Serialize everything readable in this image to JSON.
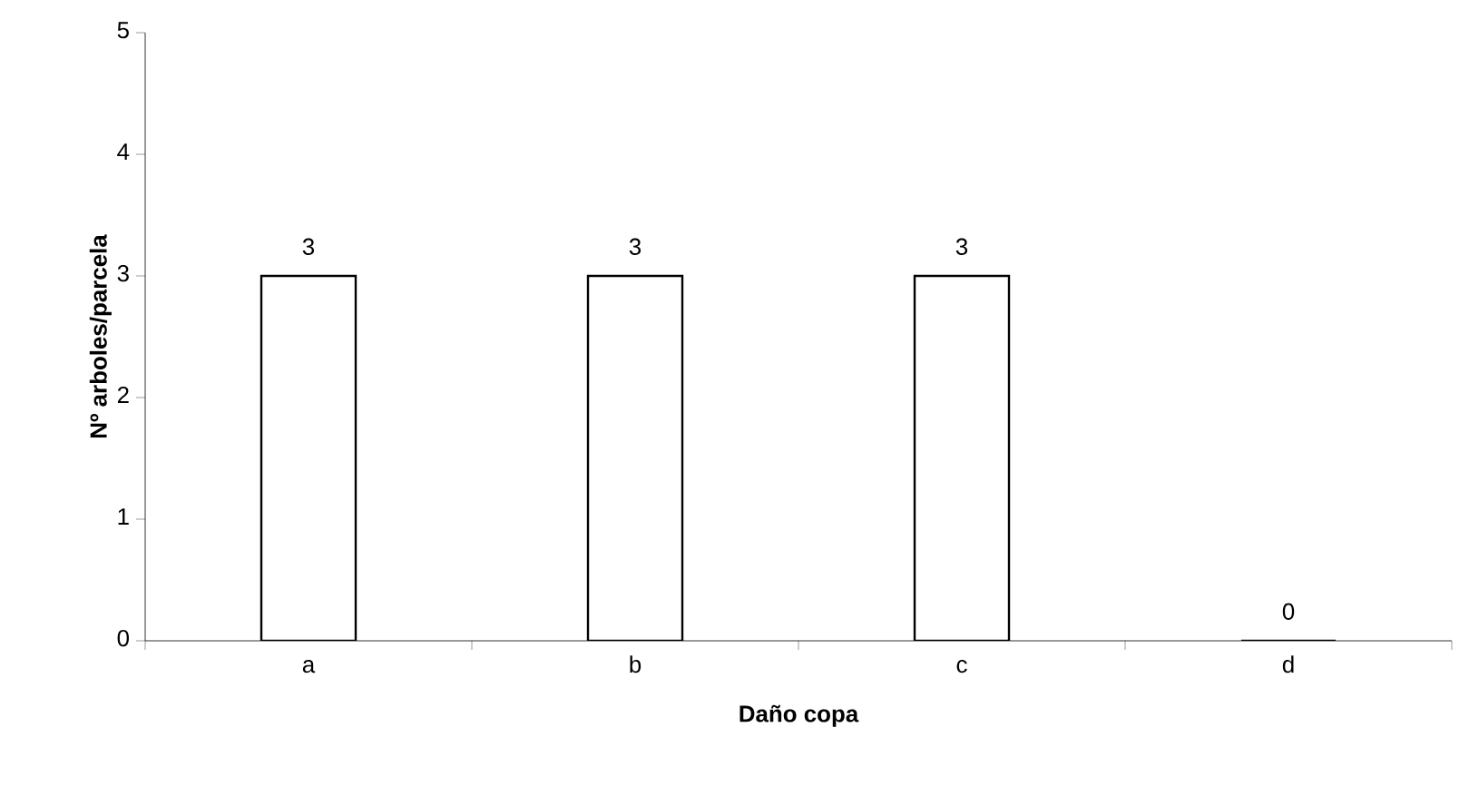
{
  "chart_data": {
    "type": "bar",
    "xlabel": "Daño copa",
    "ylabel": "Nº arboles/parcela",
    "categories": [
      "a",
      "b",
      "c",
      "d"
    ],
    "values": [
      3,
      3,
      3,
      0
    ],
    "color": "#ffffff",
    "ylim": [
      0,
      5
    ],
    "yticks": [
      0,
      1,
      2,
      3,
      4,
      5
    ],
    "data_labels": true
  }
}
